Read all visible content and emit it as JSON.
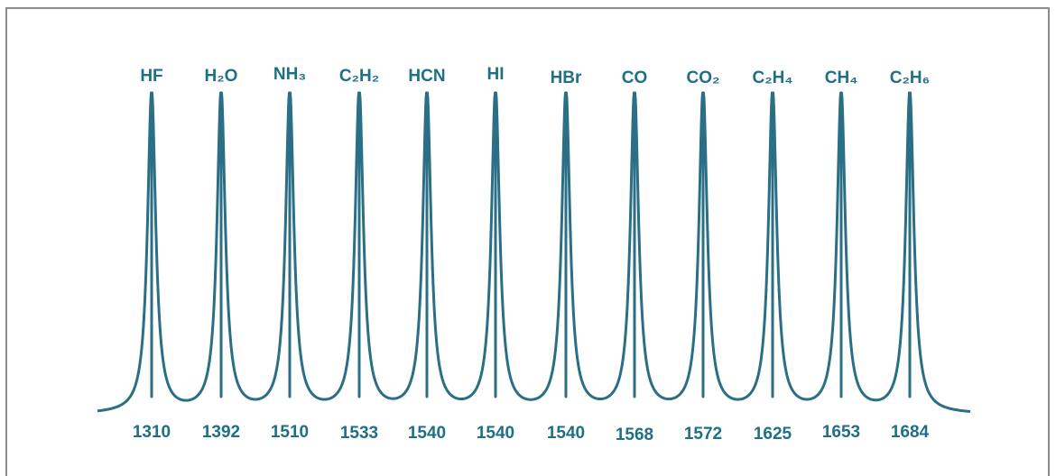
{
  "chart_data": {
    "type": "line",
    "title": "",
    "xlabel": "",
    "ylabel": "",
    "grid": false,
    "line_color": "#2a6f86",
    "text_color": "#1f6f86",
    "peaks": [
      {
        "gas": "HF",
        "wavelength": "1310"
      },
      {
        "gas": "H₂O",
        "wavelength": "1392"
      },
      {
        "gas": "NH₃",
        "wavelength": "1510"
      },
      {
        "gas": "C₂H₂",
        "wavelength": "1533"
      },
      {
        "gas": "HCN",
        "wavelength": "1540"
      },
      {
        "gas": "HI",
        "wavelength": "1540"
      },
      {
        "gas": "HBr",
        "wavelength": "1540"
      },
      {
        "gas": "CO",
        "wavelength": "1568"
      },
      {
        "gas": "CO₂",
        "wavelength": "1572"
      },
      {
        "gas": "C₂H₄",
        "wavelength": "1625"
      },
      {
        "gas": "CH₄",
        "wavelength": "1653"
      },
      {
        "gas": "C₂H₆",
        "wavelength": "1684"
      }
    ]
  }
}
